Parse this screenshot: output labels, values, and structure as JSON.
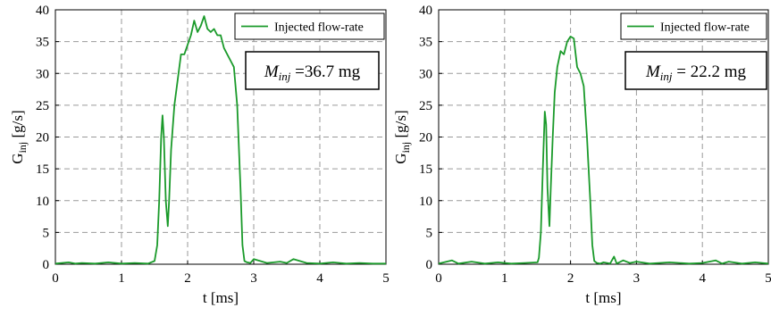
{
  "chart_data": [
    {
      "type": "line",
      "title": "",
      "xlabel": "t [ms]",
      "ylabel_main": "G",
      "ylabel_sub": "inj",
      "ylabel_unit": " [g/s]",
      "xlim": [
        0,
        5
      ],
      "ylim": [
        0,
        40
      ],
      "x_ticks": [
        0,
        1,
        2,
        3,
        4,
        5
      ],
      "y_ticks": [
        0,
        5,
        10,
        15,
        20,
        25,
        30,
        35,
        40
      ],
      "grid": true,
      "legend_position": "top-right",
      "series": [
        {
          "name": "Injected flow-rate",
          "color": "#1a9a2a",
          "x": [
            0,
            0.2,
            0.3,
            0.4,
            0.6,
            0.8,
            1.0,
            1.2,
            1.4,
            1.5,
            1.54,
            1.57,
            1.6,
            1.62,
            1.64,
            1.67,
            1.7,
            1.72,
            1.75,
            1.8,
            1.85,
            1.9,
            1.95,
            2.0,
            2.05,
            2.1,
            2.15,
            2.2,
            2.25,
            2.3,
            2.35,
            2.4,
            2.45,
            2.5,
            2.55,
            2.6,
            2.65,
            2.7,
            2.75,
            2.8,
            2.83,
            2.86,
            2.9,
            2.95,
            3.0,
            3.2,
            3.4,
            3.5,
            3.6,
            3.8,
            4.0,
            4.2,
            4.4,
            4.6,
            4.8,
            5.0
          ],
          "y": [
            0.1,
            0.3,
            0.1,
            0.2,
            0.1,
            0.3,
            0.1,
            0.2,
            0.1,
            0.5,
            3,
            10,
            20,
            23.4,
            20,
            10,
            6,
            10,
            18,
            25,
            29,
            33,
            33,
            34.5,
            36,
            38.3,
            36.5,
            37.5,
            39,
            37,
            36.5,
            37,
            36,
            36,
            34,
            33,
            32,
            31,
            25,
            12,
            3,
            0.5,
            0.3,
            0.2,
            0.8,
            0.2,
            0.4,
            0.2,
            0.8,
            0.2,
            0.1,
            0.3,
            0.1,
            0.2,
            0.1,
            0.1
          ]
        }
      ],
      "annotation": {
        "symbol": "M",
        "subscript": "inj",
        "text": " =36.7 mg"
      }
    },
    {
      "type": "line",
      "title": "",
      "xlabel": "t [ms]",
      "ylabel_main": "G",
      "ylabel_sub": "inj",
      "ylabel_unit": " [g/s]",
      "xlim": [
        0,
        5
      ],
      "ylim": [
        0,
        40
      ],
      "x_ticks": [
        0,
        1,
        2,
        3,
        4,
        5
      ],
      "y_ticks": [
        0,
        5,
        10,
        15,
        20,
        25,
        30,
        35,
        40
      ],
      "grid": true,
      "legend_position": "top-right",
      "series": [
        {
          "name": "Injected flow-rate",
          "color": "#1a9a2a",
          "x": [
            0,
            0.2,
            0.3,
            0.5,
            0.7,
            0.9,
            1.1,
            1.3,
            1.5,
            1.52,
            1.55,
            1.58,
            1.61,
            1.63,
            1.65,
            1.68,
            1.7,
            1.73,
            1.76,
            1.8,
            1.85,
            1.9,
            1.95,
            2.0,
            2.05,
            2.1,
            2.15,
            2.2,
            2.25,
            2.3,
            2.33,
            2.36,
            2.4,
            2.45,
            2.5,
            2.6,
            2.66,
            2.7,
            2.8,
            2.9,
            3.0,
            3.2,
            3.5,
            3.8,
            4.0,
            4.2,
            4.3,
            4.4,
            4.6,
            4.8,
            5.0
          ],
          "y": [
            0.1,
            0.6,
            0.1,
            0.4,
            0.1,
            0.3,
            0.1,
            0.2,
            0.3,
            1,
            5,
            15,
            24,
            22,
            12,
            6,
            12,
            20,
            27,
            31,
            33.5,
            33,
            35,
            35.8,
            35.5,
            31,
            30,
            28,
            20,
            10,
            3,
            0.5,
            0.2,
            0.1,
            0.3,
            0.1,
            1.2,
            0.1,
            0.6,
            0.2,
            0.4,
            0.1,
            0.3,
            0.1,
            0.2,
            0.6,
            0.1,
            0.4,
            0.1,
            0.3,
            0.1
          ]
        }
      ],
      "annotation": {
        "symbol": "M",
        "subscript": "inj",
        "text": " = 22.2 mg"
      }
    }
  ]
}
